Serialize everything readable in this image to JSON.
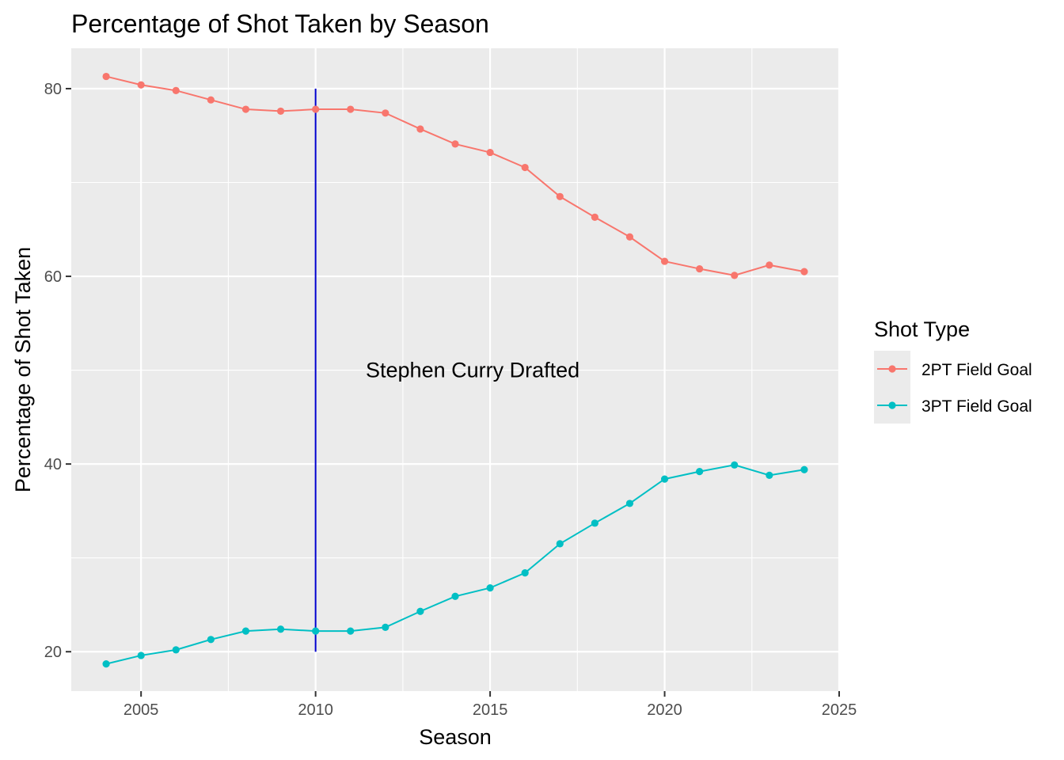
{
  "chart_data": {
    "type": "line",
    "title": "Percentage of Shot Taken by Season",
    "xlabel": "Season",
    "ylabel": "Percentage of Shot Taken",
    "xlim": [
      2003.0,
      2025.0
    ],
    "ylim": [
      15.8,
      84.3
    ],
    "x_ticks": [
      2005,
      2010,
      2015,
      2020,
      2025
    ],
    "y_ticks": [
      20,
      40,
      60,
      80
    ],
    "grid": true,
    "legend": {
      "title": "Shot Type",
      "position": "right"
    },
    "x": [
      2004,
      2005,
      2006,
      2007,
      2008,
      2009,
      2010,
      2011,
      2012,
      2013,
      2014,
      2015,
      2016,
      2017,
      2018,
      2019,
      2020,
      2021,
      2022,
      2023,
      2024
    ],
    "series": [
      {
        "name": "2PT Field Goal",
        "color": "#F8766D",
        "values": [
          81.3,
          80.4,
          79.8,
          78.8,
          77.8,
          77.6,
          77.8,
          77.8,
          77.4,
          75.7,
          74.1,
          73.2,
          71.6,
          68.5,
          66.3,
          64.2,
          61.6,
          60.8,
          60.1,
          61.2,
          60.5
        ]
      },
      {
        "name": "3PT Field Goal",
        "color": "#00BFC4",
        "values": [
          18.7,
          19.6,
          20.2,
          21.3,
          22.2,
          22.4,
          22.2,
          22.2,
          22.6,
          24.3,
          25.9,
          26.8,
          28.4,
          31.5,
          33.7,
          35.8,
          38.4,
          39.2,
          39.9,
          38.8,
          39.4
        ]
      }
    ],
    "annotations": [
      {
        "type": "vline",
        "x": 2010,
        "y_from": 20,
        "y_to": 80,
        "color": "#0000CD"
      },
      {
        "type": "text",
        "text": "Stephen Curry Drafted",
        "x": 2015,
        "y": 50
      }
    ]
  }
}
